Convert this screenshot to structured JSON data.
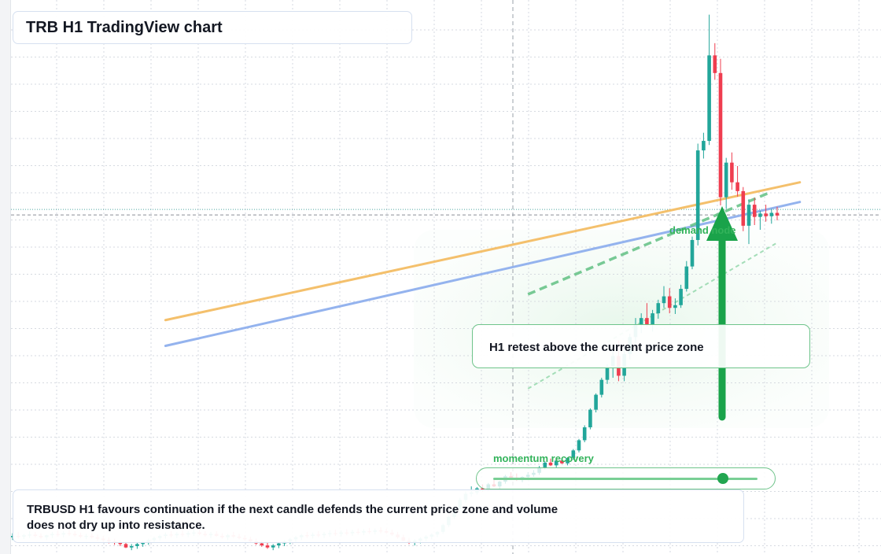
{
  "title": "TRB H1 TradingView chart",
  "callout_text": "H1 retest above the current price zone",
  "summary_lines": [
    "TRBUSD H1 favours continuation if the next candle defends the current price zone and volume",
    "does not dry up into resistance."
  ],
  "demand_label": "demand node",
  "momentum_label": "momentum recovery",
  "momentum_level": 0.87,
  "colors": {
    "bull": "#22a69a",
    "bear": "#ef3d4f",
    "orange_line": "#f4c06c",
    "blue_line": "#94b3ee",
    "green_accent": "#1aa34a",
    "grid": "#d6dae0"
  },
  "chart_data": {
    "type": "candlestick",
    "title": "TRB H1 TradingView chart",
    "symbol": "TRBUSD",
    "timeframe": "H1",
    "xlabel": "",
    "ylabel": "",
    "grid": true,
    "ohlc": [
      [
        12.0,
        12.6,
        11.6,
        12.2
      ],
      [
        12.2,
        12.8,
        11.8,
        12.1
      ],
      [
        12.1,
        12.5,
        11.7,
        12.3
      ],
      [
        12.3,
        12.9,
        11.9,
        12.4
      ],
      [
        12.4,
        12.8,
        12.0,
        12.2
      ],
      [
        12.2,
        12.6,
        11.8,
        12.0
      ],
      [
        12.0,
        12.4,
        11.6,
        12.3
      ],
      [
        12.3,
        12.8,
        11.9,
        12.5
      ],
      [
        12.5,
        13.0,
        12.1,
        12.4
      ],
      [
        12.4,
        12.9,
        12.0,
        12.6
      ],
      [
        12.6,
        13.1,
        12.2,
        12.5
      ],
      [
        12.5,
        12.9,
        12.1,
        12.3
      ],
      [
        12.3,
        12.7,
        11.9,
        12.1
      ],
      [
        12.1,
        12.5,
        11.7,
        12.2
      ],
      [
        12.2,
        12.6,
        11.8,
        12.0
      ],
      [
        12.0,
        12.4,
        11.5,
        11.8
      ],
      [
        11.8,
        12.2,
        11.3,
        11.6
      ],
      [
        11.6,
        12.0,
        11.1,
        11.4
      ],
      [
        11.4,
        11.8,
        10.9,
        11.2
      ],
      [
        11.2,
        11.6,
        10.7,
        11.0
      ],
      [
        11.0,
        11.4,
        10.4,
        10.5
      ],
      [
        10.5,
        11.0,
        10.1,
        10.7
      ],
      [
        10.7,
        11.2,
        10.3,
        11.0
      ],
      [
        11.0,
        11.5,
        10.6,
        11.3
      ],
      [
        11.3,
        11.8,
        10.9,
        11.6
      ],
      [
        11.6,
        12.1,
        11.2,
        11.9
      ],
      [
        11.9,
        12.4,
        11.5,
        12.2
      ],
      [
        12.2,
        12.7,
        11.8,
        12.4
      ],
      [
        12.4,
        12.9,
        12.0,
        12.3
      ],
      [
        12.3,
        12.8,
        11.9,
        12.5
      ],
      [
        12.5,
        13.0,
        12.1,
        12.4
      ],
      [
        12.4,
        12.9,
        12.0,
        12.6
      ],
      [
        12.6,
        13.1,
        12.2,
        12.7
      ],
      [
        12.7,
        13.2,
        12.3,
        12.5
      ],
      [
        12.5,
        12.9,
        12.1,
        12.3
      ],
      [
        12.3,
        12.8,
        11.9,
        12.5
      ],
      [
        12.5,
        12.9,
        12.1,
        12.2
      ],
      [
        12.2,
        12.6,
        11.8,
        12.0
      ],
      [
        12.0,
        12.5,
        11.6,
        12.3
      ],
      [
        12.3,
        12.8,
        11.9,
        12.1
      ],
      [
        12.1,
        12.5,
        11.7,
        11.9
      ],
      [
        11.9,
        12.3,
        11.5,
        11.7
      ],
      [
        11.7,
        12.1,
        11.2,
        11.4
      ],
      [
        11.4,
        11.8,
        10.9,
        11.1
      ],
      [
        11.1,
        11.5,
        10.6,
        10.8
      ],
      [
        10.8,
        11.2,
        10.3,
        10.5
      ],
      [
        10.5,
        11.0,
        10.1,
        10.8
      ],
      [
        10.8,
        11.3,
        10.4,
        11.1
      ],
      [
        11.1,
        11.6,
        10.7,
        11.4
      ],
      [
        11.4,
        11.9,
        11.0,
        11.7
      ],
      [
        11.7,
        12.2,
        11.3,
        12.0
      ],
      [
        12.0,
        12.5,
        11.6,
        12.3
      ],
      [
        12.3,
        12.8,
        11.9,
        12.2
      ],
      [
        12.2,
        12.7,
        11.8,
        12.4
      ],
      [
        12.4,
        12.9,
        12.0,
        12.3
      ],
      [
        12.3,
        12.8,
        11.9,
        12.5
      ],
      [
        12.5,
        13.0,
        12.1,
        12.6
      ],
      [
        12.6,
        13.1,
        12.2,
        12.5
      ],
      [
        12.5,
        13.0,
        12.1,
        12.7
      ],
      [
        12.7,
        13.2,
        12.3,
        12.6
      ],
      [
        12.6,
        13.1,
        12.2,
        12.8
      ],
      [
        12.8,
        13.3,
        12.4,
        12.7
      ],
      [
        12.7,
        13.2,
        12.3,
        12.9
      ],
      [
        12.9,
        13.4,
        12.5,
        12.8
      ],
      [
        12.8,
        13.3,
        12.4,
        13.0
      ],
      [
        13.0,
        13.5,
        12.6,
        12.9
      ],
      [
        12.9,
        13.3,
        12.5,
        12.7
      ],
      [
        12.7,
        13.1,
        12.2,
        12.4
      ],
      [
        12.4,
        12.8,
        11.8,
        12.0
      ],
      [
        12.0,
        12.4,
        11.4,
        11.5
      ],
      [
        11.5,
        11.9,
        11.0,
        11.2
      ],
      [
        11.2,
        11.7,
        10.8,
        11.5
      ],
      [
        11.5,
        12.0,
        11.1,
        11.8
      ],
      [
        11.8,
        12.3,
        11.4,
        12.1
      ],
      [
        12.1,
        12.6,
        11.7,
        12.4
      ],
      [
        12.4,
        12.9,
        12.0,
        12.8
      ],
      [
        12.8,
        14.0,
        12.5,
        13.8
      ],
      [
        13.8,
        15.2,
        13.5,
        15.0
      ],
      [
        15.0,
        16.5,
        14.7,
        16.2
      ],
      [
        16.2,
        17.8,
        15.9,
        17.5
      ],
      [
        17.5,
        18.8,
        17.1,
        18.4
      ],
      [
        18.4,
        19.5,
        18.0,
        18.6
      ],
      [
        18.6,
        19.4,
        18.3,
        19.2
      ],
      [
        19.2,
        19.8,
        18.7,
        19.0
      ],
      [
        19.0,
        20.0,
        18.8,
        19.8
      ],
      [
        19.8,
        20.5,
        19.4,
        19.5
      ],
      [
        19.5,
        20.3,
        19.1,
        20.2
      ],
      [
        20.2,
        21.2,
        19.9,
        21.0
      ],
      [
        21.0,
        21.6,
        20.6,
        20.8
      ],
      [
        20.8,
        21.4,
        20.3,
        20.6
      ],
      [
        20.6,
        21.0,
        20.1,
        20.9
      ],
      [
        20.9,
        21.6,
        20.5,
        21.2
      ],
      [
        21.2,
        21.9,
        20.9,
        21.5
      ],
      [
        21.5,
        22.5,
        21.2,
        22.3
      ],
      [
        22.3,
        23.2,
        22.0,
        23.0
      ],
      [
        23.0,
        23.6,
        22.5,
        22.6
      ],
      [
        22.6,
        23.4,
        22.3,
        23.3
      ],
      [
        23.3,
        23.7,
        22.8,
        22.9
      ],
      [
        22.9,
        23.8,
        22.6,
        23.7
      ],
      [
        23.7,
        25.0,
        23.4,
        24.8
      ],
      [
        24.8,
        26.5,
        24.5,
        26.3
      ],
      [
        26.3,
        28.5,
        26.0,
        28.2
      ],
      [
        28.2,
        31.0,
        27.9,
        30.8
      ],
      [
        30.8,
        33.2,
        30.4,
        33.0
      ],
      [
        33.0,
        35.5,
        32.6,
        35.2
      ],
      [
        35.2,
        37.5,
        34.6,
        37.2
      ],
      [
        37.2,
        40.0,
        35.5,
        38.7
      ],
      [
        38.7,
        41.0,
        35.0,
        35.8
      ],
      [
        35.8,
        40.2,
        35.0,
        39.0
      ],
      [
        39.0,
        42.0,
        38.2,
        41.5
      ],
      [
        41.5,
        44.3,
        40.6,
        43.3
      ],
      [
        43.3,
        45.0,
        42.1,
        44.3
      ],
      [
        44.3,
        46.5,
        43.0,
        43.3
      ],
      [
        43.3,
        45.5,
        42.3,
        45.0
      ],
      [
        45.0,
        47.0,
        44.2,
        46.5
      ],
      [
        46.5,
        49.0,
        45.8,
        47.5
      ],
      [
        47.5,
        48.7,
        45.0,
        45.8
      ],
      [
        45.8,
        47.2,
        44.9,
        46.2
      ],
      [
        46.2,
        49.2,
        45.8,
        48.6
      ],
      [
        48.6,
        52.7,
        48.2,
        51.9
      ],
      [
        51.9,
        56.3,
        51.5,
        55.8
      ],
      [
        55.8,
        70.0,
        55.0,
        69.0
      ],
      [
        69.0,
        71.6,
        67.8,
        70.4
      ],
      [
        70.4,
        89.0,
        69.8,
        83.0
      ],
      [
        83.0,
        84.8,
        79.4,
        80.4
      ],
      [
        80.4,
        82.5,
        60.9,
        62.1
      ],
      [
        62.1,
        67.9,
        60.4,
        67.2
      ],
      [
        67.2,
        68.7,
        63.2,
        64.3
      ],
      [
        64.3,
        66.7,
        62.2,
        63.0
      ],
      [
        63.0,
        63.6,
        57.1,
        57.9
      ],
      [
        57.9,
        61.8,
        55.2,
        61.0
      ],
      [
        61.0,
        62.0,
        58.0,
        59.2
      ],
      [
        59.2,
        60.1,
        57.3,
        59.7
      ],
      [
        59.7,
        61.0,
        58.5,
        59.3
      ],
      [
        59.3,
        60.4,
        58.2,
        59.8
      ],
      [
        59.8,
        60.7,
        58.7,
        59.4
      ]
    ],
    "overlays": {
      "orange_trendline": [
        [
          27,
          44.0
        ],
        [
          139,
          64.3
        ]
      ],
      "blue_trendline": [
        [
          27,
          40.2
        ],
        [
          139,
          61.4
        ]
      ],
      "green_dashed_support": [
        [
          91,
          47.8
        ],
        [
          134,
          62.9
        ]
      ],
      "green_dotted_support": [
        [
          91,
          33.9
        ],
        [
          135,
          55.4
        ]
      ],
      "horizontal_level": 59.5
    }
  }
}
